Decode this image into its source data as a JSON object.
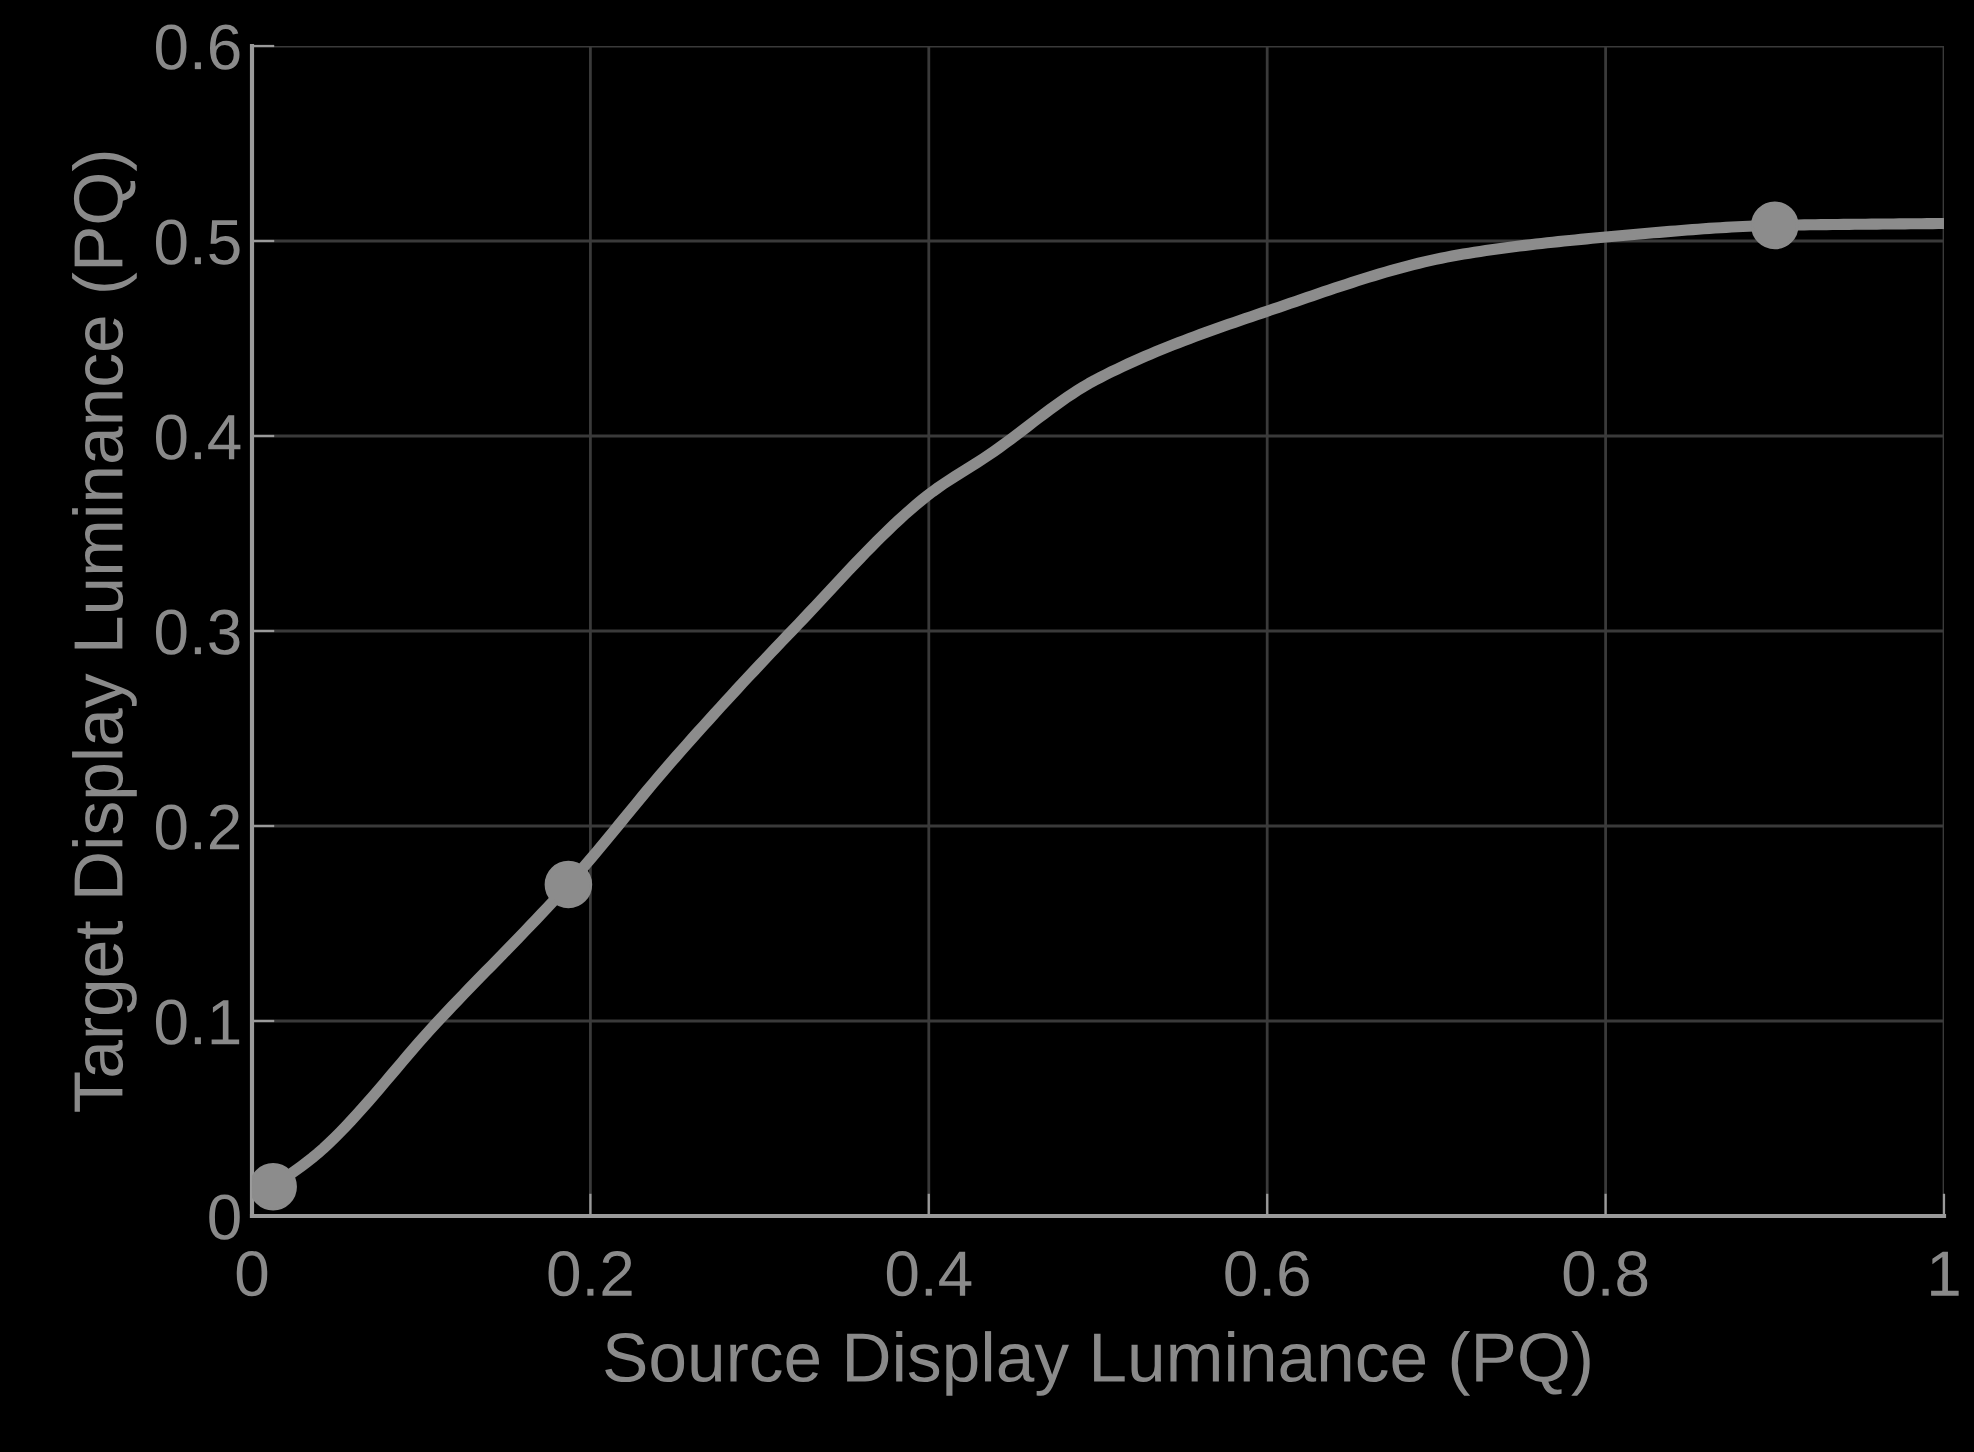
{
  "chart_data": {
    "type": "line",
    "xlabel": "Source Display Luminance (PQ)",
    "ylabel": "Target Display Luminance (PQ)",
    "series": [
      {
        "color": "#8c8c8c",
        "marker": "none",
        "line_style": "solid",
        "x": [
          0.0125,
          0.04,
          0.109,
          0.187,
          0.249,
          0.319,
          0.4,
          0.435,
          0.499,
          0.6,
          0.714,
          0.8,
          0.9,
          1.0
        ],
        "values": [
          0.015,
          0.033,
          0.099,
          0.17,
          0.234,
          0.3,
          0.37,
          0.39,
          0.429,
          0.464,
          0.493,
          0.502,
          0.508,
          0.509
        ]
      },
      {
        "type": "scatter",
        "color": "#8c8c8c",
        "marker": "circle",
        "x": [
          0.0125,
          0.187,
          0.9
        ],
        "values": [
          0.015,
          0.17,
          0.508
        ]
      }
    ],
    "xlim": [
      0,
      1
    ],
    "ylim": [
      0,
      0.6
    ],
    "xticks": [
      0,
      0.2,
      0.4,
      0.6,
      0.8,
      1
    ],
    "yticks": [
      0,
      0.1,
      0.2,
      0.3,
      0.4,
      0.5,
      0.6
    ],
    "grid": true
  }
}
